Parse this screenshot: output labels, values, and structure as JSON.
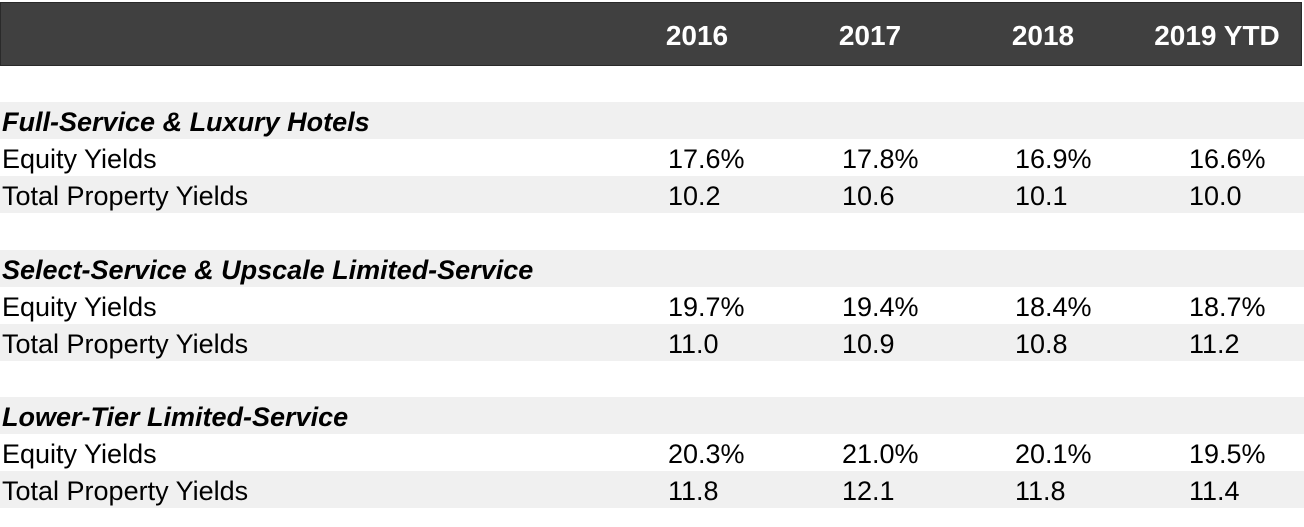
{
  "header": {
    "columns": [
      "2016",
      "2017",
      "2018",
      "2019 YTD"
    ]
  },
  "sections": [
    {
      "title": "Full-Service & Luxury Hotels",
      "rows": [
        {
          "label": "Equity Yields",
          "values": [
            "17.6%",
            "17.8%",
            "16.9%",
            "16.6%"
          ]
        },
        {
          "label": "Total Property Yields",
          "values": [
            "10.2",
            "10.6",
            "10.1",
            "10.0"
          ]
        }
      ]
    },
    {
      "title": "Select-Service & Upscale Limited-Service",
      "rows": [
        {
          "label": "Equity Yields",
          "values": [
            "19.7%",
            "19.4%",
            "18.4%",
            "18.7%"
          ]
        },
        {
          "label": "Total Property Yields",
          "values": [
            "11.0",
            "10.9",
            "10.8",
            "11.2"
          ]
        }
      ]
    },
    {
      "title": "Lower-Tier Limited-Service",
      "rows": [
        {
          "label": "Equity Yields",
          "values": [
            "20.3%",
            "21.0%",
            "20.1%",
            "19.5%"
          ]
        },
        {
          "label": "Total Property Yields",
          "values": [
            "11.8",
            "12.1",
            "11.8",
            "11.4"
          ]
        }
      ]
    }
  ]
}
